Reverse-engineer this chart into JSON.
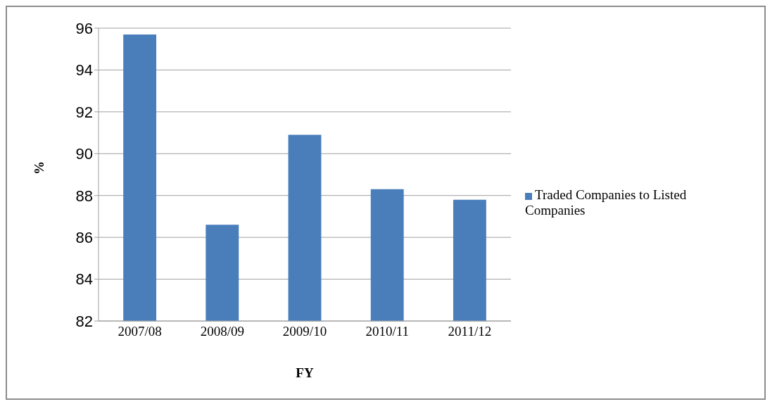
{
  "chart_data": {
    "type": "bar",
    "xlabel": "FY",
    "ylabel": "%",
    "categories": [
      "2007/08",
      "2008/09",
      "2009/10",
      "2010/11",
      "2011/12"
    ],
    "series": [
      {
        "name": "Traded Companies to Listed Companies",
        "color": "#4a7ebb",
        "values": [
          95.7,
          86.6,
          90.9,
          88.3,
          87.8
        ]
      }
    ],
    "ylim": [
      82,
      96
    ],
    "yticks": [
      82,
      84,
      86,
      88,
      90,
      92,
      94,
      96
    ],
    "grid": "y",
    "legend": "right"
  }
}
